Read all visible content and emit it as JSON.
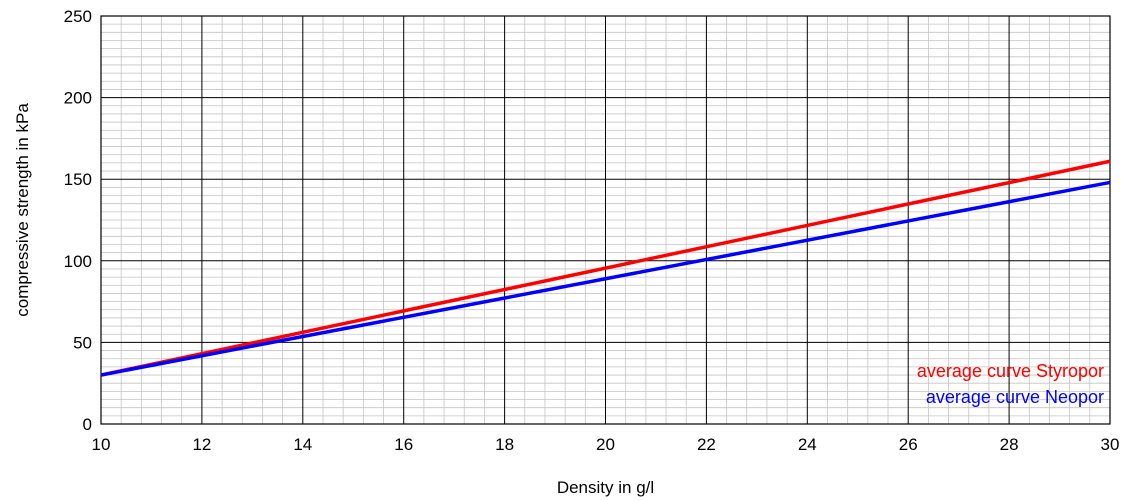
{
  "chart_data": {
    "type": "line",
    "title": "",
    "xlabel": "Density in g/l",
    "ylabel": "compressive strength in kPa",
    "xlim": [
      10,
      30
    ],
    "ylim": [
      0,
      250
    ],
    "x_ticks": [
      "10",
      "12",
      "14",
      "16",
      "18",
      "20",
      "22",
      "24",
      "26",
      "28",
      "30"
    ],
    "y_ticks": [
      "0",
      "50",
      "100",
      "150",
      "200",
      "250"
    ],
    "grid": true,
    "legend_position": "bottom-right",
    "series": [
      {
        "name": "average curve Styropor",
        "color": "#ff0000",
        "x": [
          10,
          30
        ],
        "y": [
          30,
          161
        ]
      },
      {
        "name": "average curve Neopor",
        "color": "#0000ff",
        "x": [
          10,
          30
        ],
        "y": [
          30,
          148
        ]
      }
    ]
  }
}
